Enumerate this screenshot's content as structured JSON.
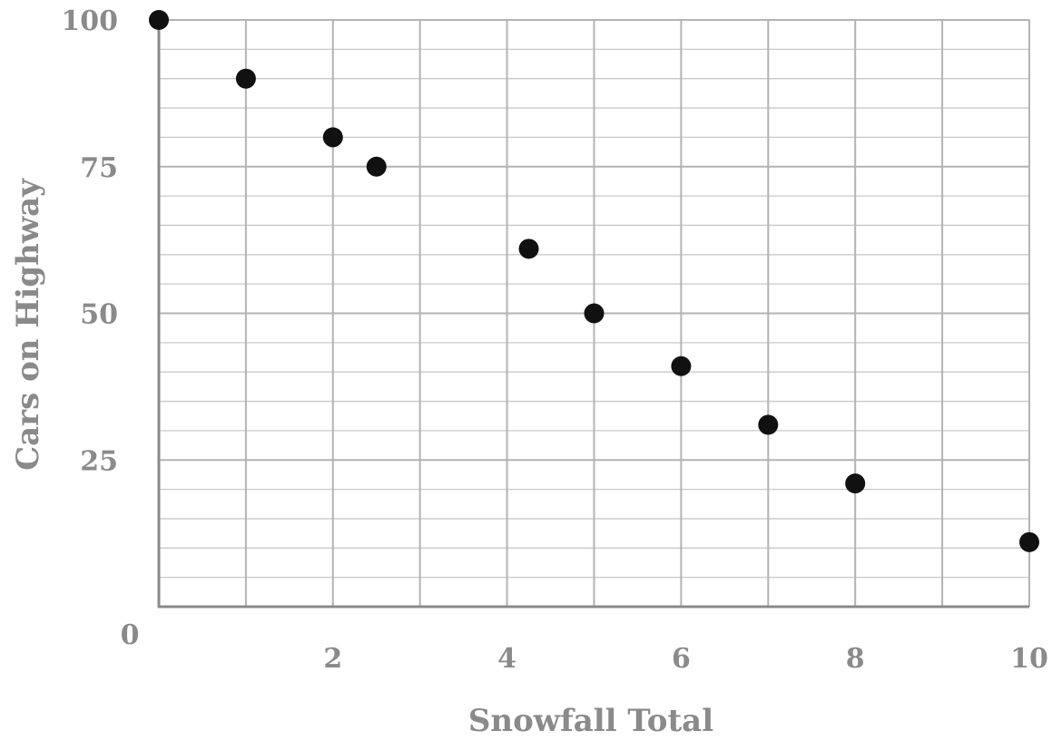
{
  "chart_data": {
    "type": "scatter",
    "title": "",
    "xlabel": "Snowfall Total",
    "ylabel": "Cars on Highway",
    "xlim": [
      0,
      10
    ],
    "ylim": [
      0,
      100
    ],
    "x_ticks": [
      2,
      4,
      6,
      8,
      10
    ],
    "y_ticks": [
      25,
      50,
      75,
      100
    ],
    "origin_label": "0",
    "x_grid_step": 1,
    "y_grid_step": 5,
    "grid": true,
    "legend": "none",
    "colors": {
      "points": "#111111",
      "text": "#8a8a8a",
      "grid": "#b3b3b3",
      "axis": "#8a8a8a"
    },
    "series": [
      {
        "x": [
          0,
          1,
          2,
          2.5,
          4.25,
          5,
          6,
          7,
          8,
          10
        ],
        "y": [
          100,
          90,
          80,
          75,
          61,
          50,
          41,
          31,
          21,
          11
        ]
      }
    ]
  }
}
